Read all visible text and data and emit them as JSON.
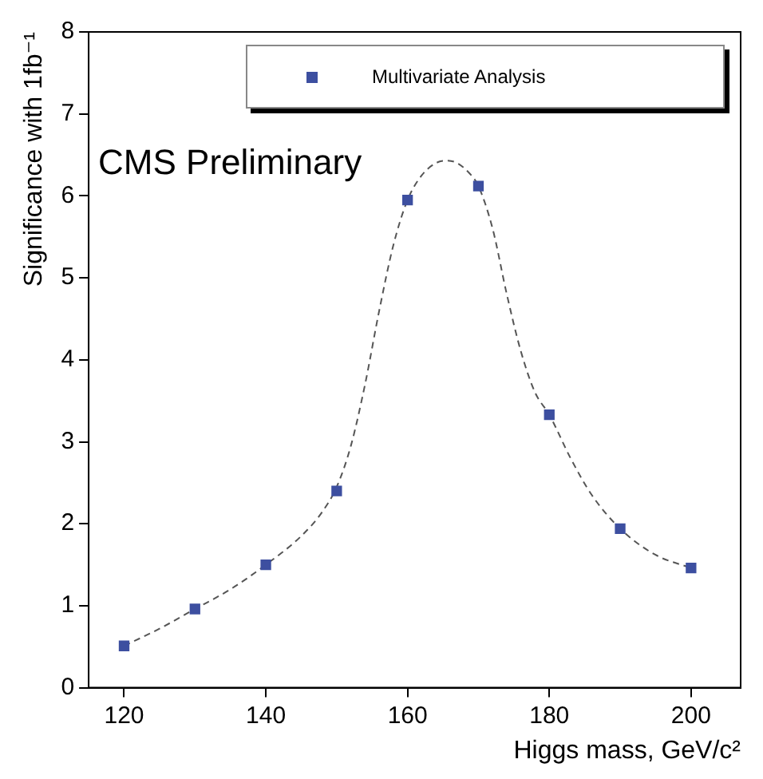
{
  "chart_data": {
    "type": "scatter",
    "xlabel": "Higgs mass, GeV/c²",
    "ylabel": "Significance with 1fb⁻¹",
    "annotations": [
      "CMS Preliminary"
    ],
    "xlim": [
      115,
      207
    ],
    "xticks": [
      120,
      140,
      160,
      180,
      200
    ],
    "ylim": [
      0,
      8
    ],
    "yticks": [
      0,
      1,
      2,
      3,
      4,
      5,
      6,
      7,
      8
    ],
    "grid": false,
    "legend": "top right",
    "series": [
      {
        "name": "Multivariate Analysis",
        "color": "#3d4fa0",
        "marker": "square",
        "x": [
          120,
          130,
          140,
          150,
          160,
          170,
          180,
          190,
          200
        ],
        "values": [
          0.51,
          0.96,
          1.5,
          2.4,
          5.95,
          6.12,
          3.33,
          1.94,
          1.46
        ]
      },
      {
        "type": "line",
        "color": "#555555",
        "line_style": "dashed",
        "marker": "none",
        "x": [
          120,
          125,
          130,
          135,
          140,
          145,
          148,
          150,
          152,
          154,
          156,
          158,
          160,
          162,
          164,
          165.5,
          167,
          169,
          170,
          172,
          174,
          176,
          178,
          180,
          183,
          186,
          190,
          195,
          200
        ],
        "values": [
          0.51,
          0.72,
          0.96,
          1.2,
          1.5,
          1.85,
          2.15,
          2.45,
          2.95,
          3.7,
          4.6,
          5.4,
          5.95,
          6.25,
          6.4,
          6.43,
          6.4,
          6.25,
          6.12,
          5.6,
          4.8,
          4.1,
          3.6,
          3.33,
          2.8,
          2.35,
          1.94,
          1.62,
          1.46
        ]
      }
    ]
  }
}
